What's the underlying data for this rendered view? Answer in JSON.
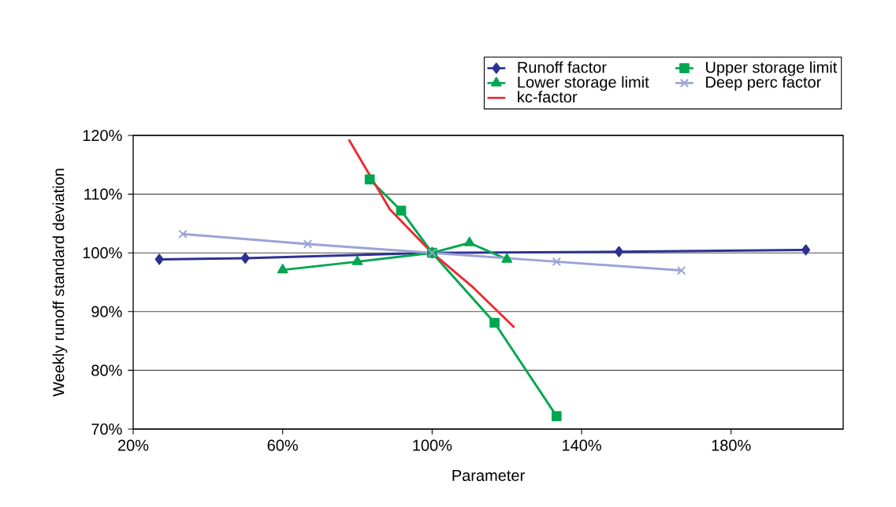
{
  "chart_data": {
    "type": "line",
    "xlabel": "Parameter",
    "ylabel": "Weekly runoff standard deviation",
    "xlim": [
      20,
      210
    ],
    "xticks": [
      {
        "value": 20,
        "label": "20%"
      },
      {
        "value": 60,
        "label": "60%"
      },
      {
        "value": 100,
        "label": "100%"
      },
      {
        "value": 140,
        "label": "140%"
      },
      {
        "value": 180,
        "label": "180%"
      }
    ],
    "ylim": [
      70,
      120
    ],
    "yticks": [
      {
        "value": 70,
        "label": "70%"
      },
      {
        "value": 80,
        "label": "80%"
      },
      {
        "value": 90,
        "label": "90%"
      },
      {
        "value": 100,
        "label": "100%"
      },
      {
        "value": 110,
        "label": "110%"
      },
      {
        "value": 120,
        "label": "120%"
      }
    ],
    "grid": "y",
    "legend": "top right",
    "series": [
      {
        "name": "Runoff factor",
        "color": "#2e3192",
        "marker": "diamond",
        "x": [
          27,
          50,
          100,
          150,
          200
        ],
        "values": [
          98.9,
          99.1,
          100,
          100.2,
          100.5
        ]
      },
      {
        "name": "Upper storage limit",
        "color": "#00a651",
        "marker": "square",
        "x": [
          83.3,
          91.7,
          100,
          116.7,
          133.3
        ],
        "values": [
          112.5,
          107.2,
          100,
          88.1,
          72.2
        ]
      },
      {
        "name": "Lower storage limit",
        "color": "#00a651",
        "marker": "triangle",
        "x": [
          60,
          80,
          100,
          110,
          120
        ],
        "values": [
          97.1,
          98.5,
          100,
          101.7,
          98.9
        ]
      },
      {
        "name": "Deep perc factor",
        "color": "#9ba3d6",
        "marker": "cross",
        "x": [
          33.3,
          66.7,
          100,
          133.3,
          166.7
        ],
        "values": [
          103.2,
          101.5,
          100,
          98.5,
          97.0
        ]
      },
      {
        "name": "kc-factor",
        "color": "#ed2a2f",
        "marker": "none",
        "x": [
          77.7,
          88.7,
          100,
          111,
          122
        ],
        "values": [
          119.3,
          107.4,
          100,
          94.1,
          87.3
        ]
      }
    ]
  }
}
